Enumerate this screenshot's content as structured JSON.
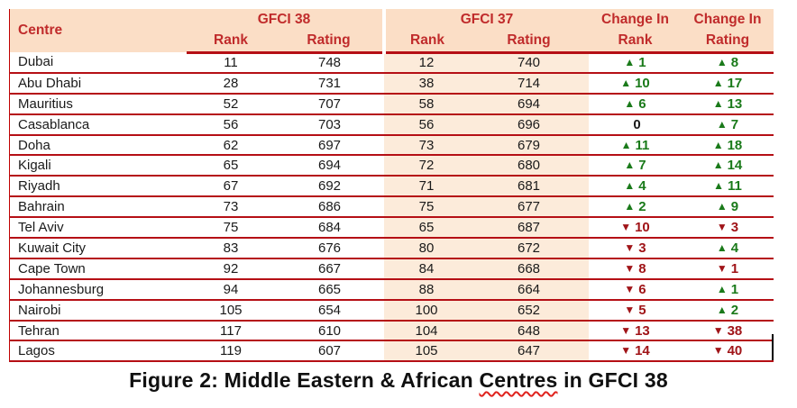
{
  "colors": {
    "border_red": "#b50f15",
    "header_text_red": "#c02b2b",
    "header_bg_peach": "#fbdec6",
    "body_col_peach": "#fcebda",
    "up_green": "#1a7a1a",
    "down_red": "#a01418"
  },
  "icons": {
    "up": "▲",
    "down": "▼"
  },
  "table": {
    "header": {
      "centre": "Centre",
      "gfci38": "GFCI 38",
      "gfci37": "GFCI 37",
      "change_in_rank_line1": "Change In",
      "change_in_rank_line2": "Rank",
      "change_in_rating_line1": "Change In",
      "change_in_rating_line2": "Rating",
      "rank38": "Rank",
      "rating38": "Rating",
      "rank37": "Rank",
      "rating37": "Rating"
    },
    "rows": [
      {
        "centre": "Dubai",
        "g38_rank": "11",
        "g38_rating": "748",
        "g37_rank": "12",
        "g37_rating": "740",
        "chg_rank": {
          "dir": "up",
          "val": "1"
        },
        "chg_rating": {
          "dir": "up",
          "val": "8"
        }
      },
      {
        "centre": "Abu Dhabi",
        "g38_rank": "28",
        "g38_rating": "731",
        "g37_rank": "38",
        "g37_rating": "714",
        "chg_rank": {
          "dir": "up",
          "val": "10"
        },
        "chg_rating": {
          "dir": "up",
          "val": "17"
        }
      },
      {
        "centre": "Mauritius",
        "g38_rank": "52",
        "g38_rating": "707",
        "g37_rank": "58",
        "g37_rating": "694",
        "chg_rank": {
          "dir": "up",
          "val": "6"
        },
        "chg_rating": {
          "dir": "up",
          "val": "13"
        }
      },
      {
        "centre": "Casablanca",
        "g38_rank": "56",
        "g38_rating": "703",
        "g37_rank": "56",
        "g37_rating": "696",
        "chg_rank": {
          "dir": "none",
          "val": "0"
        },
        "chg_rating": {
          "dir": "up",
          "val": "7"
        }
      },
      {
        "centre": "Doha",
        "g38_rank": "62",
        "g38_rating": "697",
        "g37_rank": "73",
        "g37_rating": "679",
        "chg_rank": {
          "dir": "up",
          "val": "11"
        },
        "chg_rating": {
          "dir": "up",
          "val": "18"
        }
      },
      {
        "centre": "Kigali",
        "g38_rank": "65",
        "g38_rating": "694",
        "g37_rank": "72",
        "g37_rating": "680",
        "chg_rank": {
          "dir": "up",
          "val": "7"
        },
        "chg_rating": {
          "dir": "up",
          "val": "14"
        }
      },
      {
        "centre": "Riyadh",
        "g38_rank": "67",
        "g38_rating": "692",
        "g37_rank": "71",
        "g37_rating": "681",
        "chg_rank": {
          "dir": "up",
          "val": "4"
        },
        "chg_rating": {
          "dir": "up",
          "val": "11"
        }
      },
      {
        "centre": "Bahrain",
        "g38_rank": "73",
        "g38_rating": "686",
        "g37_rank": "75",
        "g37_rating": "677",
        "chg_rank": {
          "dir": "up",
          "val": "2"
        },
        "chg_rating": {
          "dir": "up",
          "val": "9"
        }
      },
      {
        "centre": "Tel Aviv",
        "g38_rank": "75",
        "g38_rating": "684",
        "g37_rank": "65",
        "g37_rating": "687",
        "chg_rank": {
          "dir": "down",
          "val": "10"
        },
        "chg_rating": {
          "dir": "down",
          "val": "3"
        }
      },
      {
        "centre": "Kuwait City",
        "g38_rank": "83",
        "g38_rating": "676",
        "g37_rank": "80",
        "g37_rating": "672",
        "chg_rank": {
          "dir": "down",
          "val": "3"
        },
        "chg_rating": {
          "dir": "up",
          "val": "4"
        }
      },
      {
        "centre": "Cape Town",
        "g38_rank": "92",
        "g38_rating": "667",
        "g37_rank": "84",
        "g37_rating": "668",
        "chg_rank": {
          "dir": "down",
          "val": "8"
        },
        "chg_rating": {
          "dir": "down",
          "val": "1"
        }
      },
      {
        "centre": "Johannesburg",
        "g38_rank": "94",
        "g38_rating": "665",
        "g37_rank": "88",
        "g37_rating": "664",
        "chg_rank": {
          "dir": "down",
          "val": "6"
        },
        "chg_rating": {
          "dir": "up",
          "val": "1"
        }
      },
      {
        "centre": "Nairobi",
        "g38_rank": "105",
        "g38_rating": "654",
        "g37_rank": "100",
        "g37_rating": "652",
        "chg_rank": {
          "dir": "down",
          "val": "5"
        },
        "chg_rating": {
          "dir": "up",
          "val": "2"
        }
      },
      {
        "centre": "Tehran",
        "g38_rank": "117",
        "g38_rating": "610",
        "g37_rank": "104",
        "g37_rating": "648",
        "chg_rank": {
          "dir": "down",
          "val": "13"
        },
        "chg_rating": {
          "dir": "down",
          "val": "38"
        }
      },
      {
        "centre": "Lagos",
        "g38_rank": "119",
        "g38_rating": "607",
        "g37_rank": "105",
        "g37_rating": "647",
        "chg_rank": {
          "dir": "down",
          "val": "14"
        },
        "chg_rating": {
          "dir": "down",
          "val": "40"
        }
      }
    ]
  },
  "caption": {
    "part1": "Figure 2: Middle Eastern & African ",
    "misspelled_word": "Centres",
    "part2": " in GFCI 38"
  }
}
